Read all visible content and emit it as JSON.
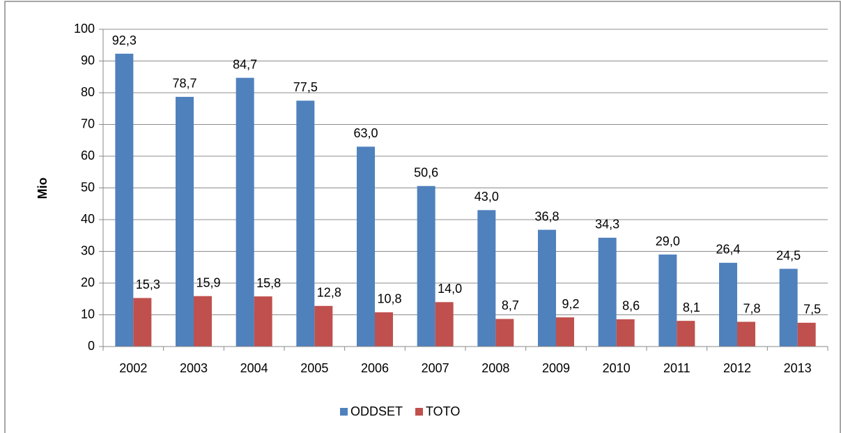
{
  "chart_data": {
    "type": "bar",
    "y_label": "Mio",
    "categories": [
      "2002",
      "2003",
      "2004",
      "2005",
      "2006",
      "2007",
      "2008",
      "2009",
      "2010",
      "2011",
      "2012",
      "2013"
    ],
    "series": [
      {
        "name": "ODDSET",
        "color": "#4f81bd",
        "values": [
          92.3,
          78.7,
          84.7,
          77.5,
          63.0,
          50.6,
          43.0,
          36.8,
          34.3,
          29.0,
          26.4,
          24.5
        ],
        "value_labels": [
          "92,3",
          "78,7",
          "84,7",
          "77,5",
          "63,0",
          "50,6",
          "43,0",
          "36,8",
          "34,3",
          "29,0",
          "26,4",
          "24,5"
        ]
      },
      {
        "name": "TOTO",
        "color": "#c0504d",
        "values": [
          15.3,
          15.9,
          15.8,
          12.8,
          10.8,
          14.0,
          8.7,
          9.2,
          8.6,
          8.1,
          7.8,
          7.5
        ],
        "value_labels": [
          "15,3",
          "15,9",
          "15,8",
          "12,8",
          "10,8",
          "14,0",
          "8,7",
          "9,2",
          "8,6",
          "8,1",
          "7,8",
          "7,5"
        ]
      }
    ],
    "ylim": [
      0,
      100
    ],
    "yticks": [
      0,
      10,
      20,
      30,
      40,
      50,
      60,
      70,
      80,
      90,
      100
    ],
    "grid": true,
    "legend": "bottom"
  }
}
